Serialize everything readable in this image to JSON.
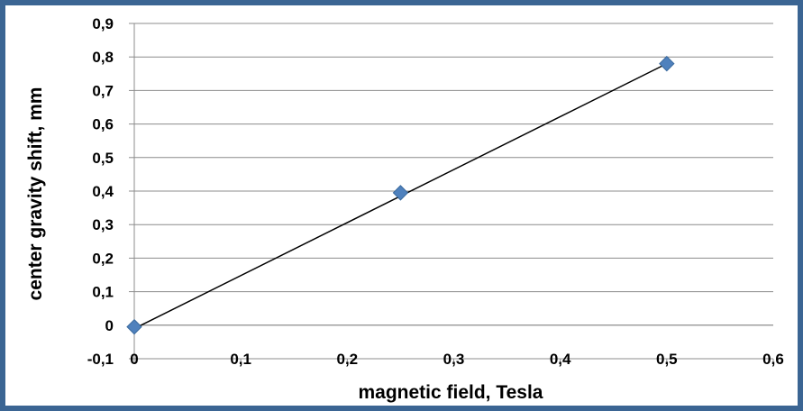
{
  "chart_data": {
    "type": "scatter",
    "title": "",
    "xlabel": "magnetic field, Tesla",
    "ylabel": "center gravity shift, mm",
    "xlim": [
      0,
      0.6
    ],
    "ylim": [
      -0.1,
      0.9
    ],
    "x_ticks": [
      "0",
      "0,1",
      "0,2",
      "0,3",
      "0,4",
      "0,5",
      "0,6"
    ],
    "y_ticks": [
      "-0,1",
      "0",
      "0,1",
      "0,2",
      "0,3",
      "0,4",
      "0,5",
      "0,6",
      "0,7",
      "0,8",
      "0,9"
    ],
    "grid": "horizontal",
    "legend": "none",
    "series": [
      {
        "marker": "diamond",
        "color": "#4f81bd",
        "x": [
          0,
          0.25,
          0.5
        ],
        "y": [
          -0.005,
          0.395,
          0.78
        ]
      }
    ],
    "trendline": {
      "type": "linear",
      "color": "#000000",
      "from": [
        0,
        -0.01
      ],
      "to": [
        0.5,
        0.78
      ]
    }
  }
}
